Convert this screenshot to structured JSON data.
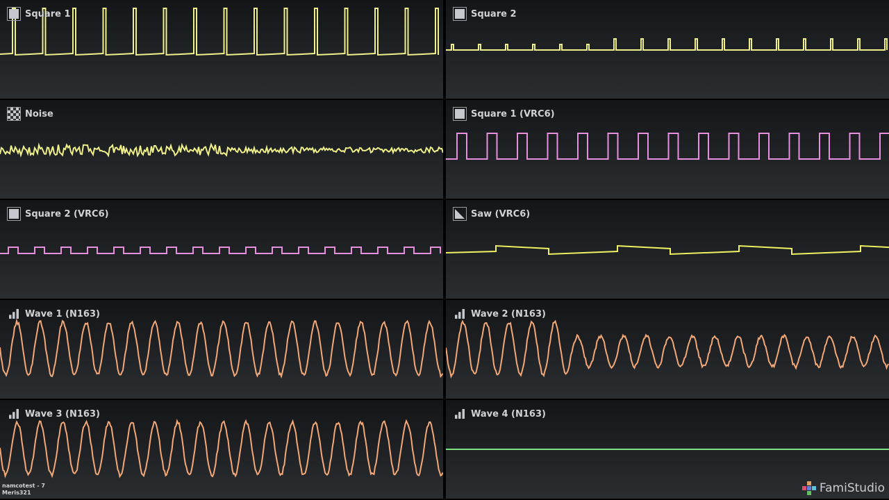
{
  "channels": [
    {
      "name": "Square 1",
      "icon": "square-icon",
      "color": "#f0f08a",
      "wave": "pulse"
    },
    {
      "name": "Square 2",
      "icon": "square-icon",
      "color": "#f0f08a",
      "wave": "pulse-small"
    },
    {
      "name": "Noise",
      "icon": "noise-icon",
      "color": "#f0f08a",
      "wave": "noise"
    },
    {
      "name": "Square 1 (VRC6)",
      "icon": "square-icon",
      "color": "#e890e0",
      "wave": "square"
    },
    {
      "name": "Square 2 (VRC6)",
      "icon": "square-icon",
      "color": "#e890e0",
      "wave": "square-small"
    },
    {
      "name": "Saw (VRC6)",
      "icon": "saw-icon",
      "color": "#f0f060",
      "wave": "saw"
    },
    {
      "name": "Wave 1 (N163)",
      "icon": "wave-table-icon",
      "color": "#f4a878",
      "wave": "sine"
    },
    {
      "name": "Wave 2 (N163)",
      "icon": "wave-table-icon",
      "color": "#f4a878",
      "wave": "sine-decay"
    },
    {
      "name": "Wave 3 (N163)",
      "icon": "wave-table-icon",
      "color": "#f4a878",
      "wave": "sine"
    },
    {
      "name": "Wave 4 (N163)",
      "icon": "wave-table-icon",
      "color": "#7ee07e",
      "wave": "flat"
    }
  ],
  "footer": {
    "song": "namcotest - 7",
    "author": "Meris321"
  },
  "brand": {
    "name": "FamiStudio"
  }
}
